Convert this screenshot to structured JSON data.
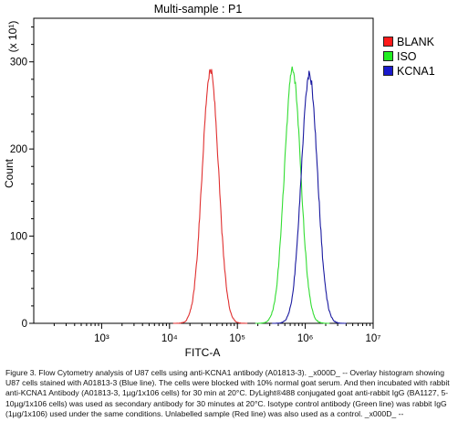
{
  "chart_data": {
    "type": "area",
    "title": "Multi-sample : P1",
    "xlabel": "FITC-A",
    "ylabel": "Count",
    "y_multiplier_label": "(x 10¹)",
    "x_scale": "log",
    "xlim": [
      100,
      10000000
    ],
    "ylim": [
      0,
      350
    ],
    "x_tick_labels": [
      "10³",
      "10⁴",
      "10⁵",
      "10⁶",
      "10⁷"
    ],
    "x_tick_values": [
      1000,
      10000,
      100000,
      1000000,
      10000000
    ],
    "y_ticks": [
      0,
      100,
      200,
      300
    ],
    "grid": false,
    "legend_position": "right",
    "series": [
      {
        "name": "BLANK",
        "color": "#e03030",
        "legend_color": "#ff1a1a",
        "peak_x": 40000,
        "peak_count": 290
      },
      {
        "name": "ISO",
        "color": "#33dd33",
        "legend_color": "#22ee22",
        "peak_x": 650000,
        "peak_count": 290
      },
      {
        "name": "KCNA1",
        "color": "#1a1aa0",
        "legend_color": "#1a1acc",
        "peak_x": 1150000,
        "peak_count": 285
      }
    ]
  },
  "caption": "Figure 3. Flow Cytometry analysis of U87 cells using anti-KCNA1 antibody (A01813-3). _x000D_ -- Overlay histogram showing U87 cells stained with A01813-3 (Blue line). The cells were blocked with 10% normal goat serum. And then incubated with rabbit anti-KCNA1 Antibody (A01813-3, 1µg/1x106 cells) for 30 min at 20°C. DyLight®488 conjugated goat anti-rabbit IgG (BA1127, 5-10µg/1x106 cells) was used as secondary antibody for 30 minutes at 20°C. Isotype control antibody (Green line) was rabbit IgG (1µg/1x106) used under the same conditions. Unlabelled sample (Red line) was also used as a control. _x000D_ --"
}
